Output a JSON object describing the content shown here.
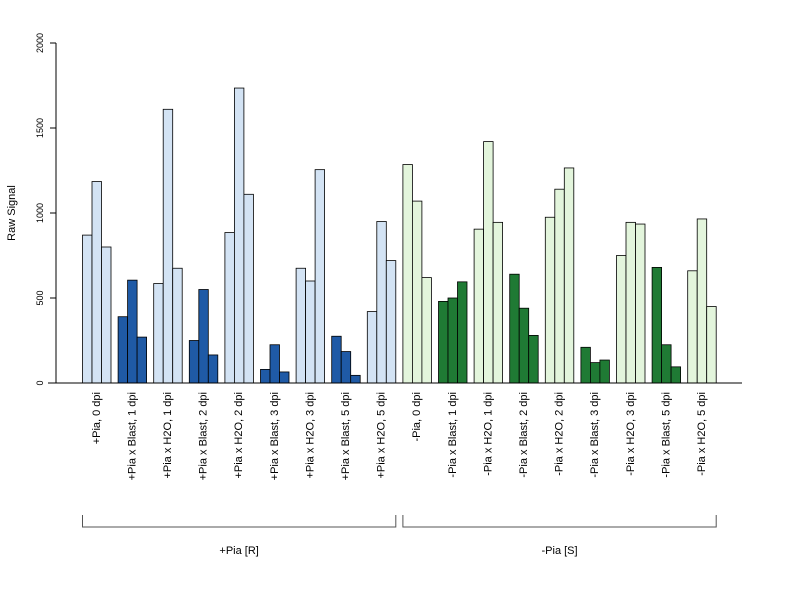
{
  "chart_data": {
    "type": "bar",
    "ylabel": "Raw Signal",
    "ylim": [
      0,
      2000
    ],
    "yticks": [
      "0",
      "500",
      "1000",
      "1500",
      "2000"
    ],
    "colors": {
      "light_blue": "#d3e3f4",
      "dark_blue": "#1f5aa6",
      "light_green": "#e3f5dc",
      "dark_green": "#1f7a34",
      "bar_border": "#000000",
      "axis": "#000000",
      "bracket": "#555555"
    },
    "categories": [
      {
        "label": "+Pia, 0 dpi",
        "values": [
          870,
          1185,
          800
        ],
        "color": "light_blue"
      },
      {
        "label": "+Pia x Blast, 1 dpi",
        "values": [
          390,
          605,
          270
        ],
        "color": "dark_blue"
      },
      {
        "label": "+Pia x H2O, 1 dpi",
        "values": [
          585,
          1610,
          675
        ],
        "color": "light_blue"
      },
      {
        "label": "+Pia x Blast, 2 dpi",
        "values": [
          250,
          550,
          165
        ],
        "color": "dark_blue"
      },
      {
        "label": "+Pia x H2O, 2 dpi",
        "values": [
          885,
          1735,
          1110
        ],
        "color": "light_blue"
      },
      {
        "label": "+Pia x Blast, 3 dpi",
        "values": [
          80,
          225,
          65
        ],
        "color": "dark_blue"
      },
      {
        "label": "+Pia x H2O, 3 dpi",
        "values": [
          675,
          600,
          1255
        ],
        "color": "light_blue"
      },
      {
        "label": "+Pia x Blast, 5 dpi",
        "values": [
          275,
          185,
          45
        ],
        "color": "dark_blue"
      },
      {
        "label": "+Pia x H2O, 5 dpi",
        "values": [
          420,
          950,
          720
        ],
        "color": "light_blue"
      },
      {
        "label": "-Pia, 0 dpi",
        "values": [
          1285,
          1070,
          620
        ],
        "color": "light_green"
      },
      {
        "label": "-Pia x Blast, 1 dpi",
        "values": [
          480,
          500,
          595
        ],
        "color": "dark_green"
      },
      {
        "label": "-Pia x H2O, 1 dpi",
        "values": [
          905,
          1420,
          945
        ],
        "color": "light_green"
      },
      {
        "label": "-Pia x Blast, 2 dpi",
        "values": [
          640,
          440,
          280
        ],
        "color": "dark_green"
      },
      {
        "label": "-Pia x H2O, 2 dpi",
        "values": [
          975,
          1140,
          1265
        ],
        "color": "light_green"
      },
      {
        "label": "-Pia x Blast, 3 dpi",
        "values": [
          210,
          120,
          135
        ],
        "color": "dark_green"
      },
      {
        "label": "-Pia x H2O, 3 dpi",
        "values": [
          750,
          945,
          935
        ],
        "color": "light_green"
      },
      {
        "label": "-Pia x Blast, 5 dpi",
        "values": [
          680,
          225,
          95
        ],
        "color": "dark_green"
      },
      {
        "label": "-Pia x H2O, 5 dpi",
        "values": [
          660,
          965,
          450
        ],
        "color": "light_green"
      }
    ],
    "groups": [
      {
        "label": "+Pia [R]",
        "first": 0,
        "last": 8
      },
      {
        "label": "-Pia [S]",
        "first": 9,
        "last": 17
      }
    ]
  }
}
